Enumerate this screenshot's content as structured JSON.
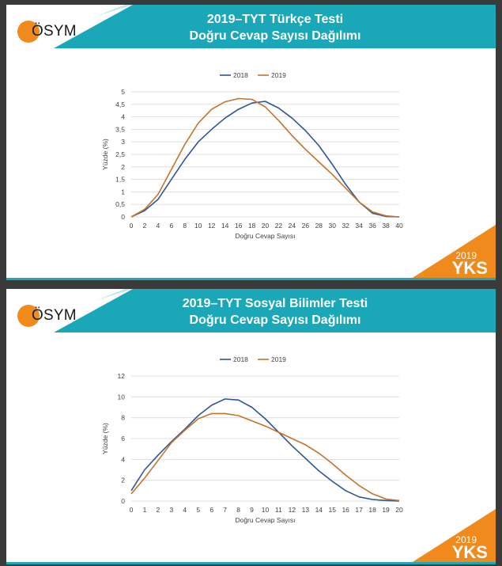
{
  "slides": [
    {
      "logo": "ÖSYM",
      "title_line1": "2019–TYT Türkçe Testi",
      "title_line2": "Doğru Cevap Sayısı Dağılımı",
      "badge_year": "2019",
      "badge_label": "YKS"
    },
    {
      "logo": "ÖSYM",
      "title_line1": "2019–TYT Sosyal Bilimler Testi",
      "title_line2": "Doğru Cevap Sayısı Dağılımı",
      "badge_year": "2019",
      "badge_label": "YKS"
    }
  ],
  "colors": {
    "header_teal": "#1aa7b8",
    "header_teal_light": "#bfe6ec",
    "accent_orange": "#f08a1c",
    "series_2018": "#2f5597",
    "series_2019": "#c5732a"
  },
  "chart_data": [
    {
      "type": "line",
      "title": "",
      "xlabel": "Doğru Cevap Sayısı",
      "ylabel": "Yüzde (%)",
      "x": [
        0,
        2,
        4,
        6,
        8,
        10,
        12,
        14,
        16,
        18,
        20,
        22,
        24,
        26,
        28,
        30,
        32,
        34,
        36,
        38,
        40
      ],
      "x_ticks": [
        "0",
        "2",
        "4",
        "6",
        "8",
        "10",
        "12",
        "14",
        "16",
        "18",
        "20",
        "22",
        "24",
        "26",
        "28",
        "30",
        "32",
        "34",
        "36",
        "38",
        "40"
      ],
      "xlim": [
        0,
        40
      ],
      "ylim": [
        0,
        5
      ],
      "y_ticks": [
        "0",
        "0,5",
        "1",
        "1,5",
        "2",
        "2,5",
        "3",
        "3,5",
        "4",
        "4,5",
        "5"
      ],
      "legend_position": "top-center",
      "grid": true,
      "series": [
        {
          "name": "2018",
          "values": [
            0.0,
            0.25,
            0.7,
            1.5,
            2.3,
            3.0,
            3.5,
            3.95,
            4.3,
            4.55,
            4.62,
            4.35,
            3.95,
            3.45,
            2.85,
            2.1,
            1.3,
            0.6,
            0.15,
            0.02,
            0.0
          ]
        },
        {
          "name": "2019",
          "values": [
            0.0,
            0.3,
            0.9,
            1.9,
            2.9,
            3.75,
            4.3,
            4.6,
            4.73,
            4.7,
            4.4,
            3.85,
            3.25,
            2.7,
            2.2,
            1.7,
            1.15,
            0.6,
            0.2,
            0.04,
            0.0
          ]
        }
      ]
    },
    {
      "type": "line",
      "title": "",
      "xlabel": "Doğru Cevap Sayısı",
      "ylabel": "Yüzde (%)",
      "x": [
        0,
        1,
        2,
        3,
        4,
        5,
        6,
        7,
        8,
        9,
        10,
        11,
        12,
        13,
        14,
        15,
        16,
        17,
        18,
        19,
        20
      ],
      "x_ticks": [
        "0",
        "1",
        "2",
        "3",
        "4",
        "5",
        "6",
        "7",
        "8",
        "9",
        "10",
        "11",
        "12",
        "13",
        "14",
        "15",
        "16",
        "17",
        "18",
        "19",
        "20"
      ],
      "xlim": [
        0,
        20
      ],
      "ylim": [
        0,
        12
      ],
      "y_ticks": [
        "0",
        "2",
        "4",
        "6",
        "8",
        "10",
        "12"
      ],
      "legend_position": "top-center",
      "grid": true,
      "series": [
        {
          "name": "2018",
          "values": [
            1.0,
            3.0,
            4.4,
            5.7,
            6.9,
            8.2,
            9.2,
            9.8,
            9.7,
            9.0,
            7.9,
            6.6,
            5.3,
            4.1,
            2.9,
            1.9,
            1.0,
            0.4,
            0.15,
            0.05,
            0.0
          ]
        },
        {
          "name": "2019",
          "values": [
            0.7,
            2.2,
            3.9,
            5.6,
            6.8,
            7.9,
            8.4,
            8.4,
            8.2,
            7.7,
            7.2,
            6.6,
            6.0,
            5.4,
            4.6,
            3.6,
            2.5,
            1.5,
            0.7,
            0.2,
            0.05
          ]
        }
      ]
    }
  ]
}
